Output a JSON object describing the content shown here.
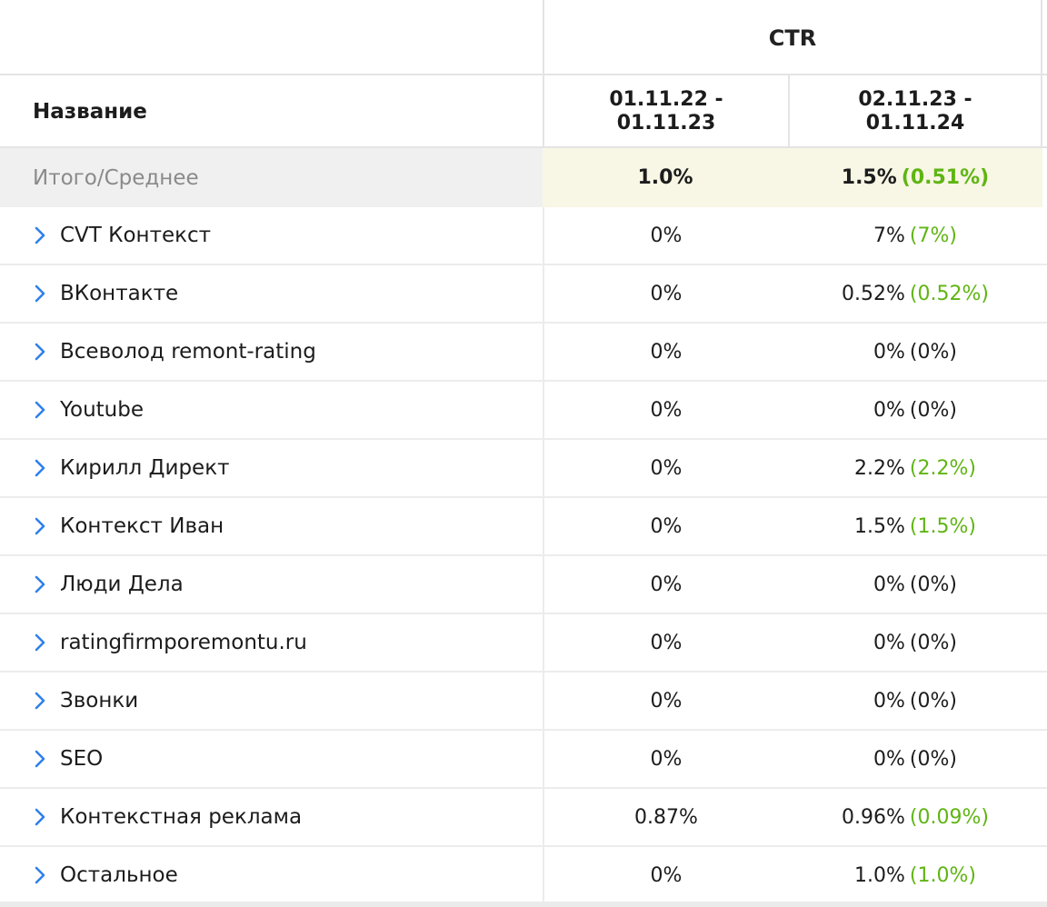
{
  "header": {
    "metric": "CTR",
    "name_col": "Название",
    "periods": [
      {
        "line1": "01.11.22 -",
        "line2": "01.11.23"
      },
      {
        "line1": "02.11.23 -",
        "line2": "01.11.24"
      }
    ]
  },
  "total": {
    "label": "Итого/Среднее",
    "v1": "1.0%",
    "v2": "1.5%",
    "delta": "(0.51%)"
  },
  "rows": [
    {
      "name": "CVT Контекст",
      "v1": "0%",
      "v2": "7%",
      "delta": "(7%)",
      "positive": true
    },
    {
      "name": "ВКонтакте",
      "v1": "0%",
      "v2": "0.52%",
      "delta": "(0.52%)",
      "positive": true
    },
    {
      "name": "Всеволод remont-rating",
      "v1": "0%",
      "v2": "0%",
      "delta": "(0%)",
      "positive": false
    },
    {
      "name": "Youtube",
      "v1": "0%",
      "v2": "0%",
      "delta": "(0%)",
      "positive": false
    },
    {
      "name": "Кирилл Директ",
      "v1": "0%",
      "v2": "2.2%",
      "delta": "(2.2%)",
      "positive": true
    },
    {
      "name": "Контекст Иван",
      "v1": "0%",
      "v2": "1.5%",
      "delta": "(1.5%)",
      "positive": true
    },
    {
      "name": "Люди Дела",
      "v1": "0%",
      "v2": "0%",
      "delta": "(0%)",
      "positive": false
    },
    {
      "name": "ratingfirmporemontu.ru",
      "v1": "0%",
      "v2": "0%",
      "delta": "(0%)",
      "positive": false
    },
    {
      "name": "Звонки",
      "v1": "0%",
      "v2": "0%",
      "delta": "(0%)",
      "positive": false
    },
    {
      "name": "SEO",
      "v1": "0%",
      "v2": "0%",
      "delta": "(0%)",
      "positive": false
    },
    {
      "name": "Контекстная реклама",
      "v1": "0.87%",
      "v2": "0.96%",
      "delta": "(0.09%)",
      "positive": true
    },
    {
      "name": "Остальное",
      "v1": "0%",
      "v2": "1.0%",
      "delta": "(1.0%)",
      "positive": true
    }
  ],
  "colors": {
    "positive_delta": "#5fb513",
    "chevron": "#2f80ed",
    "total_highlight": "#f8f6e4",
    "total_label_bg": "#f0f0f1"
  },
  "icons": {
    "row_expand": "chevron-right-icon"
  }
}
